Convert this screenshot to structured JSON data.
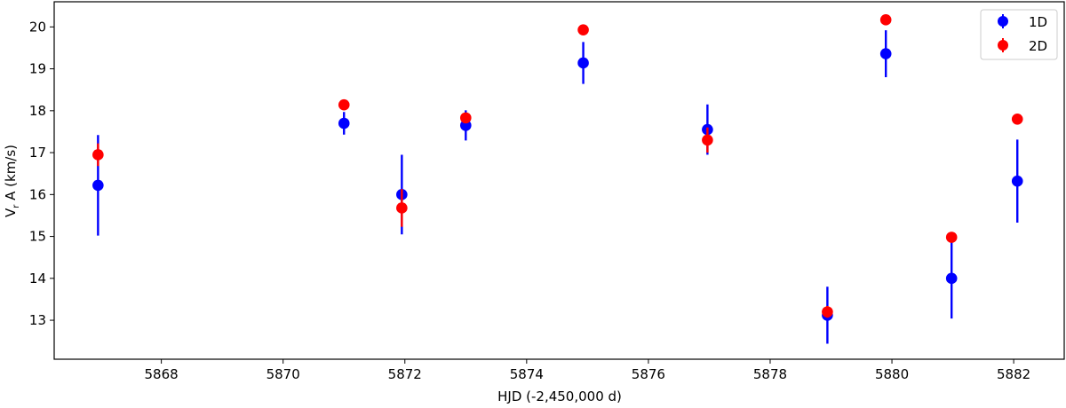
{
  "chart_data": {
    "type": "scatter",
    "title": "",
    "xlabel": "HJD (-2,450,000 d)",
    "ylabel": "V_r A (km/s)",
    "ylabel_main": "V",
    "ylabel_sub": "r",
    "ylabel_rest": " A (km/s)",
    "xlim": [
      5866.24,
      5882.83
    ],
    "ylim": [
      12.07,
      20.6
    ],
    "xticks": [
      5868,
      5870,
      5872,
      5874,
      5876,
      5878,
      5880,
      5882
    ],
    "yticks": [
      13,
      14,
      15,
      16,
      17,
      18,
      19,
      20
    ],
    "grid": false,
    "legend_position": "upper right",
    "series": [
      {
        "name": "1D",
        "color": "#0000ff",
        "x": [
          5866.96,
          5871.0,
          5871.95,
          5873.0,
          5874.93,
          5876.97,
          5878.94,
          5879.9,
          5880.98,
          5882.06
        ],
        "y": [
          16.22,
          17.7,
          16.0,
          17.65,
          19.14,
          17.55,
          13.12,
          19.36,
          14.0,
          16.32
        ],
        "yerr": [
          1.2,
          0.27,
          0.95,
          0.36,
          0.5,
          0.6,
          0.68,
          0.56,
          0.96,
          0.99
        ]
      },
      {
        "name": "2D",
        "color": "#ff0000",
        "x": [
          5866.96,
          5871.0,
          5871.95,
          5873.0,
          5874.93,
          5876.97,
          5878.94,
          5879.9,
          5880.98,
          5882.06
        ],
        "y": [
          16.95,
          18.14,
          15.68,
          17.83,
          19.93,
          17.3,
          13.2,
          20.17,
          14.98,
          17.8
        ],
        "yerr": [
          0.27,
          0.05,
          0.45,
          0.06,
          0.11,
          0.3,
          0.14,
          0.05,
          0.05,
          0.11
        ]
      }
    ]
  },
  "legend": {
    "items": [
      {
        "label": "1D",
        "color": "#0000ff"
      },
      {
        "label": "2D",
        "color": "#ff0000"
      }
    ]
  }
}
